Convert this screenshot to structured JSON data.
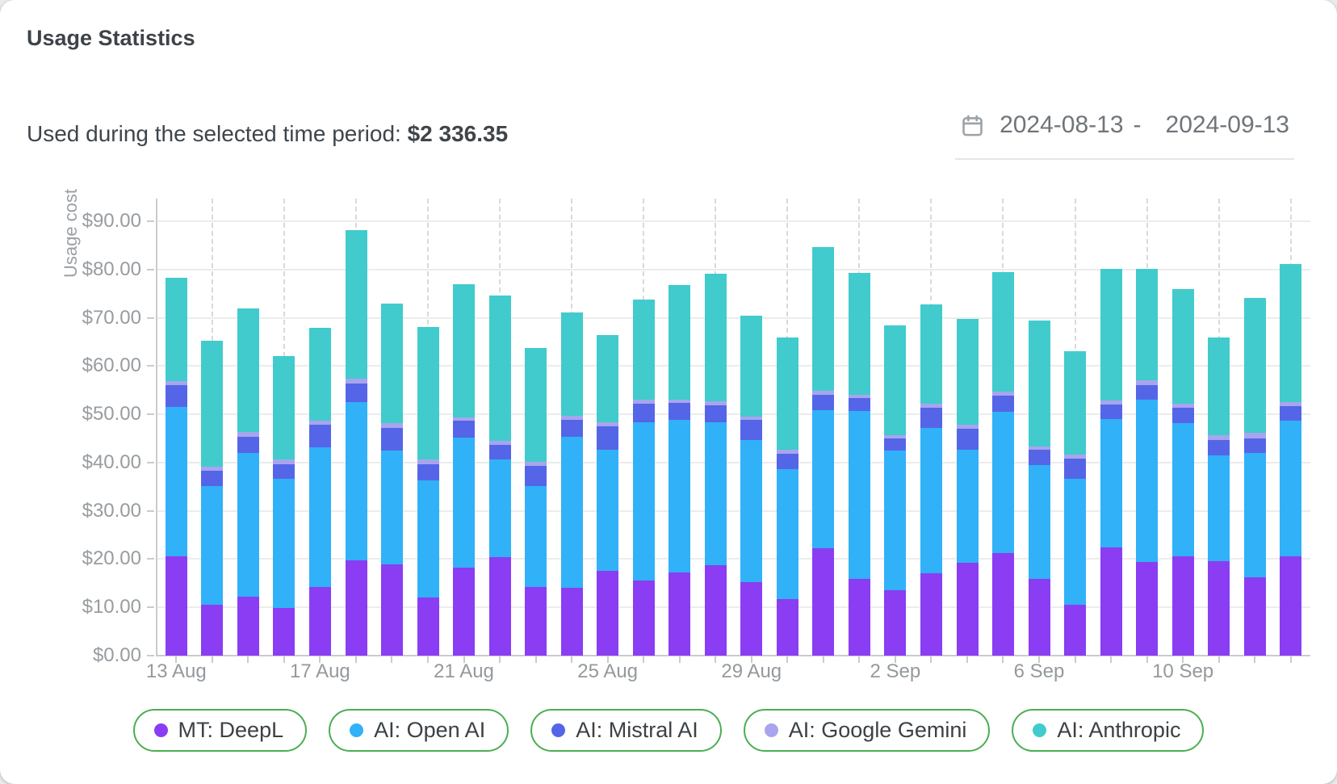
{
  "header": {
    "title": "Usage Statistics"
  },
  "summary": {
    "label": "Used during the selected time period:",
    "value": "$2 336.35"
  },
  "date_range": {
    "icon": "calendar-icon",
    "start": "2024-08-13",
    "separator": "-",
    "end": "2024-09-13"
  },
  "colors": {
    "legend_border": "#4bae51",
    "deepl": "#8a3df2",
    "openai": "#31b1f7",
    "mistral": "#5565e8",
    "gemini": "#a8a5ee",
    "anthropic": "#41cbcd"
  },
  "chart_data": {
    "type": "bar",
    "stacked": true,
    "ylabel": "Usage cost",
    "ylim": [
      0,
      90
    ],
    "grid": true,
    "ytick_labels": [
      "$0.00",
      "$10.00",
      "$20.00",
      "$30.00",
      "$40.00",
      "$50.00",
      "$60.00",
      "$70.00",
      "$80.00",
      "$90.00"
    ],
    "xtick_labels_shown": [
      "13 Aug",
      "17 Aug",
      "21 Aug",
      "25 Aug",
      "29 Aug",
      "2 Sep",
      "6 Sep",
      "10 Sep"
    ],
    "xtick_every": 4,
    "categories": [
      "13 Aug",
      "14 Aug",
      "15 Aug",
      "16 Aug",
      "17 Aug",
      "18 Aug",
      "19 Aug",
      "20 Aug",
      "21 Aug",
      "22 Aug",
      "23 Aug",
      "24 Aug",
      "25 Aug",
      "26 Aug",
      "27 Aug",
      "28 Aug",
      "29 Aug",
      "30 Aug",
      "31 Aug",
      "1 Sep",
      "2 Sep",
      "3 Sep",
      "4 Sep",
      "5 Sep",
      "6 Sep",
      "7 Sep",
      "8 Sep",
      "9 Sep",
      "10 Sep",
      "11 Sep",
      "12 Sep",
      "13 Sep"
    ],
    "series": [
      {
        "name": "MT: DeepL",
        "color": "#8a3df2",
        "values": [
          20.5,
          10.6,
          12.2,
          9.9,
          14.3,
          19.8,
          18.9,
          12.0,
          18.2,
          20.4,
          14.2,
          14.0,
          17.5,
          15.5,
          17.3,
          18.7,
          15.2,
          11.7,
          22.3,
          15.8,
          13.6,
          17.0,
          19.3,
          21.2,
          15.8,
          10.6,
          22.4,
          19.4,
          20.5,
          19.5,
          16.2,
          20.5
        ]
      },
      {
        "name": "AI: Open AI",
        "color": "#31b1f7",
        "values": [
          31.0,
          24.5,
          29.8,
          26.8,
          28.9,
          32.8,
          23.5,
          24.3,
          27.0,
          20.2,
          20.9,
          31.4,
          25.2,
          32.9,
          31.5,
          29.6,
          29.4,
          27.0,
          28.6,
          34.9,
          28.9,
          30.1,
          23.3,
          29.4,
          23.6,
          26.1,
          26.6,
          33.6,
          27.6,
          22.0,
          25.8,
          28.1
        ]
      },
      {
        "name": "AI: Mistral AI",
        "color": "#5565e8",
        "values": [
          4.5,
          3.2,
          3.4,
          2.9,
          4.7,
          3.7,
          4.8,
          3.3,
          3.5,
          3.1,
          4.2,
          3.5,
          4.8,
          3.7,
          3.6,
          3.6,
          4.2,
          3.1,
          3.2,
          2.6,
          2.5,
          4.3,
          4.4,
          3.3,
          3.2,
          4.1,
          3.1,
          3.0,
          3.2,
          3.1,
          3.0,
          3.1
        ]
      },
      {
        "name": "AI: Google Gemini",
        "color": "#a8a5ee",
        "values": [
          0.8,
          0.9,
          1.0,
          1.0,
          0.7,
          1.0,
          1.0,
          1.1,
          0.6,
          0.8,
          0.9,
          0.8,
          0.8,
          0.9,
          0.7,
          0.8,
          0.7,
          0.8,
          0.8,
          0.7,
          0.7,
          0.8,
          0.8,
          0.8,
          0.7,
          0.8,
          0.7,
          1.0,
          0.9,
          1.1,
          1.1,
          0.9
        ]
      },
      {
        "name": "AI: Anthropic",
        "color": "#41cbcd",
        "values": [
          21.5,
          26.1,
          25.5,
          21.5,
          19.3,
          30.9,
          24.8,
          27.4,
          27.6,
          30.1,
          23.6,
          21.4,
          18.1,
          20.8,
          23.7,
          26.5,
          20.9,
          23.3,
          29.8,
          25.3,
          22.8,
          20.5,
          22.0,
          24.7,
          26.1,
          21.4,
          27.4,
          23.2,
          23.7,
          20.2,
          28.0,
          28.6
        ]
      }
    ]
  },
  "legend": {
    "items": [
      {
        "label": "MT: DeepL",
        "color": "#8a3df2"
      },
      {
        "label": "AI: Open AI",
        "color": "#31b1f7"
      },
      {
        "label": "AI: Mistral AI",
        "color": "#5565e8"
      },
      {
        "label": "AI: Google Gemini",
        "color": "#a8a5ee"
      },
      {
        "label": "AI: Anthropic",
        "color": "#41cbcd"
      }
    ]
  }
}
